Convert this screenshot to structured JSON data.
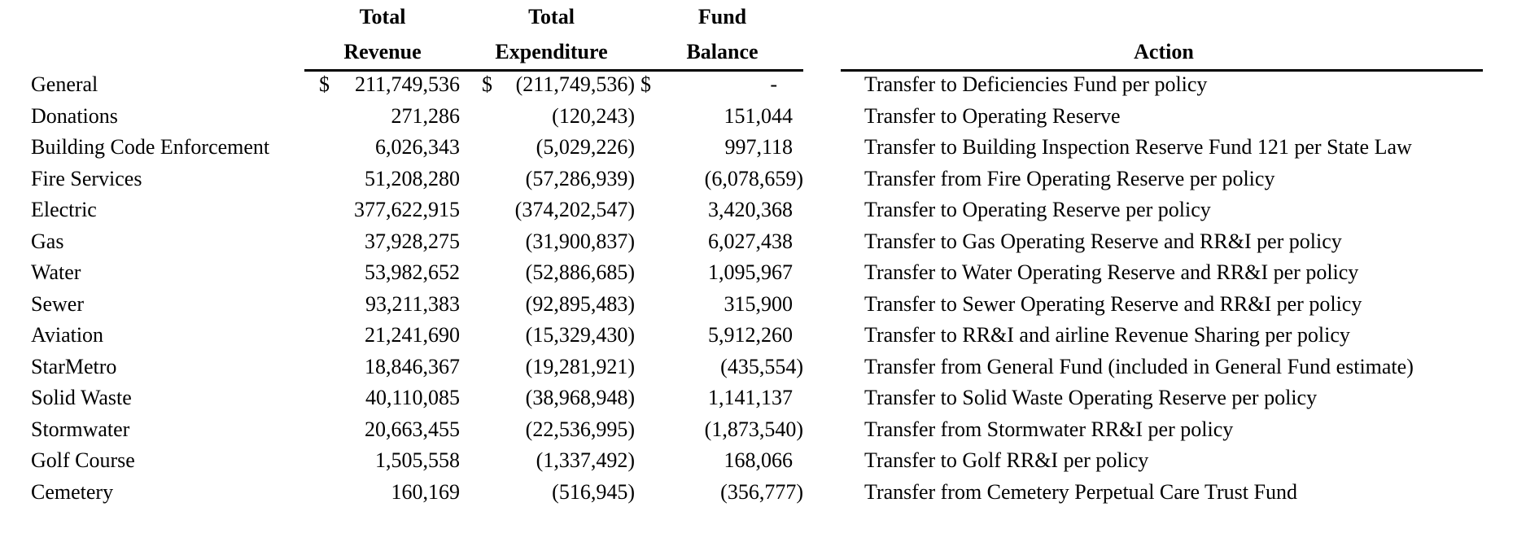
{
  "colors": {
    "text": "#000000",
    "background": "#ffffff",
    "rule": "#000000"
  },
  "header": {
    "revenue": {
      "line1": "Total",
      "line2": "Revenue"
    },
    "expenditure": {
      "line1": "Total",
      "line2": "Expenditure"
    },
    "balance": {
      "line1": "Fund",
      "line2": "Balance"
    },
    "action": "Action"
  },
  "rows": [
    {
      "fund": "General",
      "currency": "$",
      "revenue": "211,749,536",
      "expenditure": "(211,749,536)",
      "balance": "-",
      "action": "Transfer to Deficiencies Fund per policy"
    },
    {
      "fund": "Donations",
      "currency": "",
      "revenue": "271,286",
      "expenditure": "(120,243)",
      "balance": "151,044",
      "action": "Transfer to Operating Reserve"
    },
    {
      "fund": "Building Code Enforcement",
      "currency": "",
      "revenue": "6,026,343",
      "expenditure": "(5,029,226)",
      "balance": "997,118",
      "action": "Transfer to Building Inspection Reserve Fund 121 per State Law"
    },
    {
      "fund": "Fire Services",
      "currency": "",
      "revenue": "51,208,280",
      "expenditure": "(57,286,939)",
      "balance": "(6,078,659)",
      "action": "Transfer from Fire Operating Reserve per policy"
    },
    {
      "fund": "Electric",
      "currency": "",
      "revenue": "377,622,915",
      "expenditure": "(374,202,547)",
      "balance": "3,420,368",
      "action": "Transfer to Operating Reserve per policy"
    },
    {
      "fund": "Gas",
      "currency": "",
      "revenue": "37,928,275",
      "expenditure": "(31,900,837)",
      "balance": "6,027,438",
      "action": "Transfer to Gas Operating Reserve and RR&I per policy"
    },
    {
      "fund": "Water",
      "currency": "",
      "revenue": "53,982,652",
      "expenditure": "(52,886,685)",
      "balance": "1,095,967",
      "action": "Transfer to Water Operating Reserve and RR&I per policy"
    },
    {
      "fund": "Sewer",
      "currency": "",
      "revenue": "93,211,383",
      "expenditure": "(92,895,483)",
      "balance": "315,900",
      "action": "Transfer to Sewer Operating Reserve and RR&I per policy"
    },
    {
      "fund": "Aviation",
      "currency": "",
      "revenue": "21,241,690",
      "expenditure": "(15,329,430)",
      "balance": "5,912,260",
      "action": "Transfer to RR&I and airline Revenue Sharing per policy"
    },
    {
      "fund": "StarMetro",
      "currency": "",
      "revenue": "18,846,367",
      "expenditure": "(19,281,921)",
      "balance": "(435,554)",
      "action": "Transfer from General Fund (included in General Fund estimate)"
    },
    {
      "fund": "Solid Waste",
      "currency": "",
      "revenue": "40,110,085",
      "expenditure": "(38,968,948)",
      "balance": "1,141,137",
      "action": "Transfer to Solid Waste Operating Reserve per policy"
    },
    {
      "fund": "Stormwater",
      "currency": "",
      "revenue": "20,663,455",
      "expenditure": "(22,536,995)",
      "balance": "(1,873,540)",
      "action": "Transfer from Stormwater RR&I per policy"
    },
    {
      "fund": "Golf Course",
      "currency": "",
      "revenue": "1,505,558",
      "expenditure": "(1,337,492)",
      "balance": "168,066",
      "action": "Transfer to Golf RR&I per policy"
    },
    {
      "fund": "Cemetery",
      "currency": "",
      "revenue": "160,169",
      "expenditure": "(516,945)",
      "balance": "(356,777)",
      "action": "Transfer from Cemetery Perpetual Care Trust Fund"
    }
  ]
}
